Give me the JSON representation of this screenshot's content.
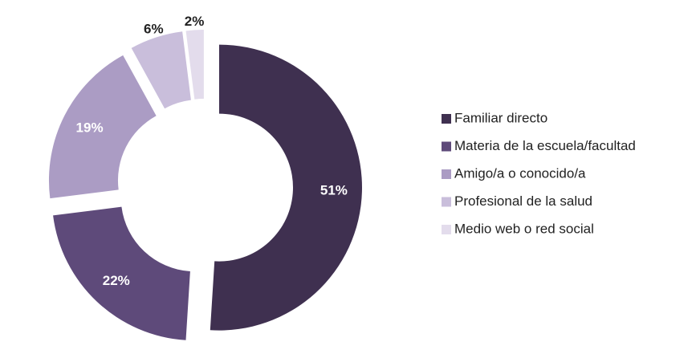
{
  "chart_data": {
    "type": "donut",
    "categories": [
      "Familiar directo",
      "Materia de la escuela/facultad",
      "Amigo/a o conocido/a",
      "Profesional de la salud",
      "Medio web o red social"
    ],
    "values": [
      51,
      22,
      19,
      6,
      2
    ],
    "value_labels": [
      "51%",
      "22%",
      "19%",
      "6%",
      "2%"
    ],
    "colors": [
      "#3f3050",
      "#5e4a7a",
      "#ab9cc4",
      "#c9bedb",
      "#e3dcec"
    ],
    "legend": "right"
  }
}
